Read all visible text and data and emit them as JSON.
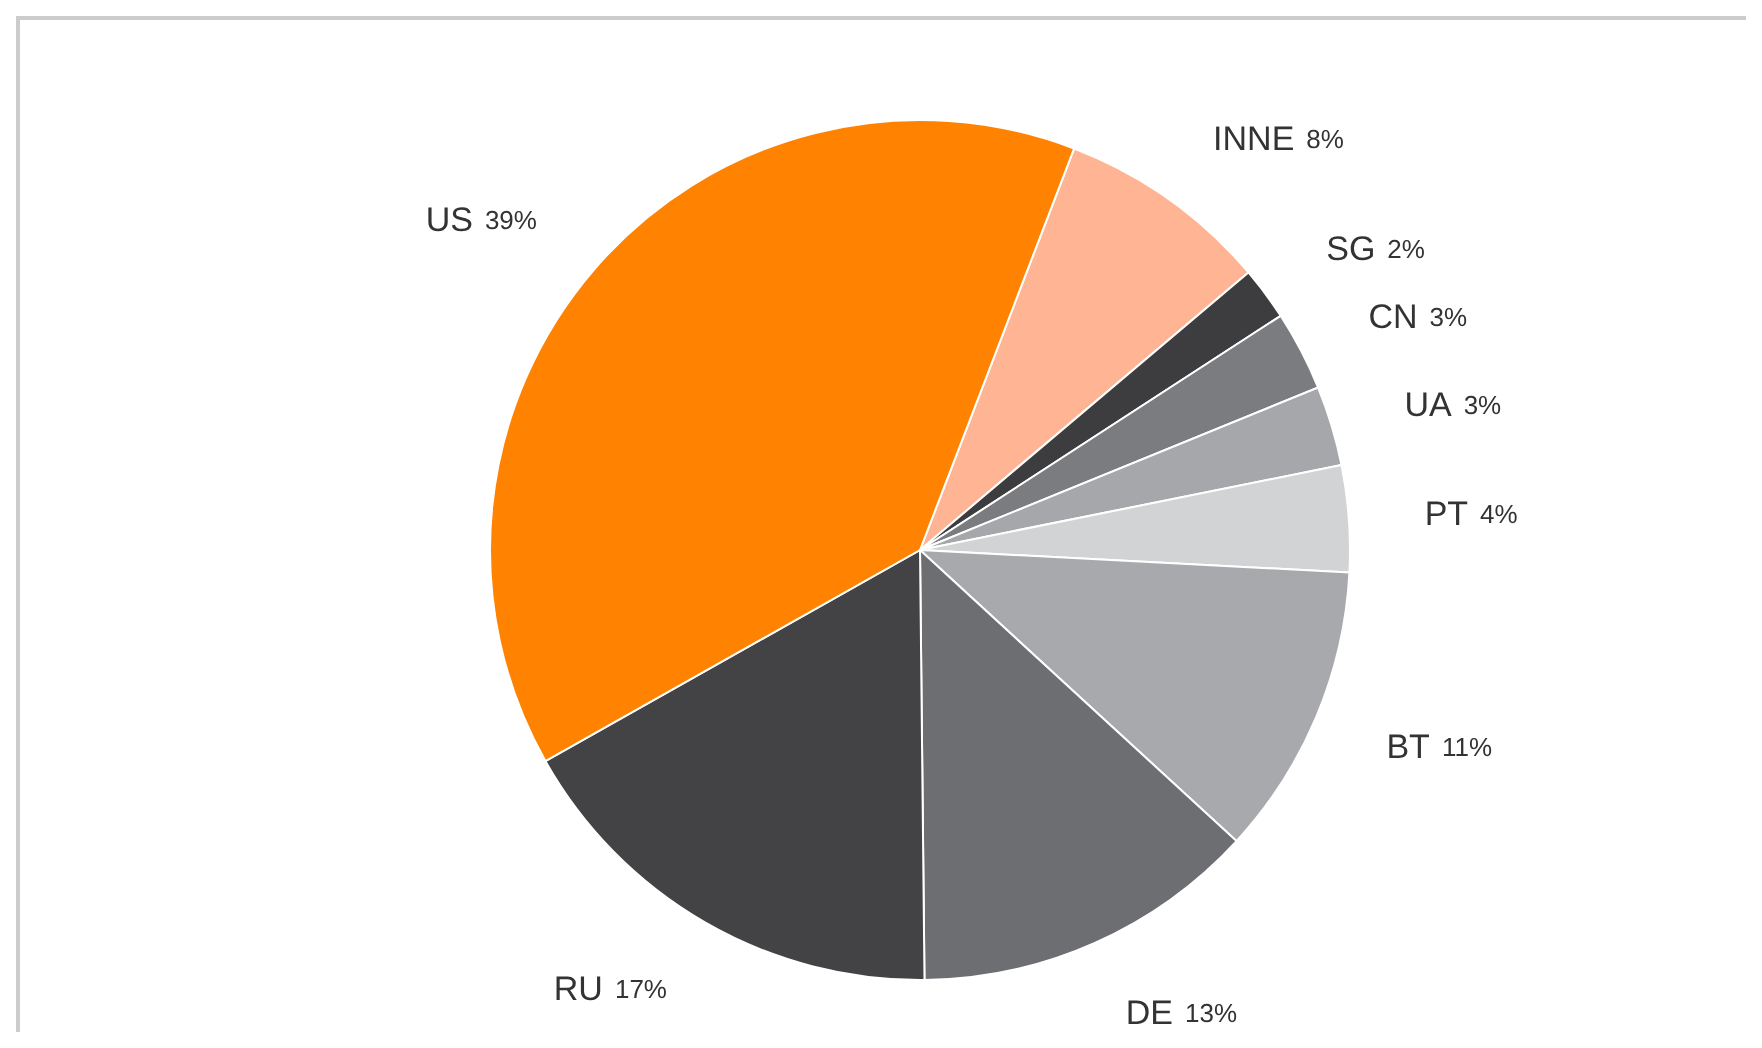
{
  "chart_data": {
    "type": "pie",
    "categories": [
      "INNE",
      "SG",
      "CN",
      "UA",
      "PT",
      "BT",
      "DE",
      "RU",
      "US"
    ],
    "values": [
      8,
      2,
      3,
      3,
      4,
      11,
      13,
      17,
      39
    ],
    "value_labels": [
      "8%",
      "2%",
      "3%",
      "3%",
      "4%",
      "11%",
      "13%",
      "17%",
      "39%"
    ],
    "colors": [
      "#ffb494",
      "#3d3d3f",
      "#7b7c80",
      "#a6a7aa",
      "#d2d3d4",
      "#a8a9ac",
      "#6d6e72",
      "#434345",
      "#ff8300"
    ]
  }
}
